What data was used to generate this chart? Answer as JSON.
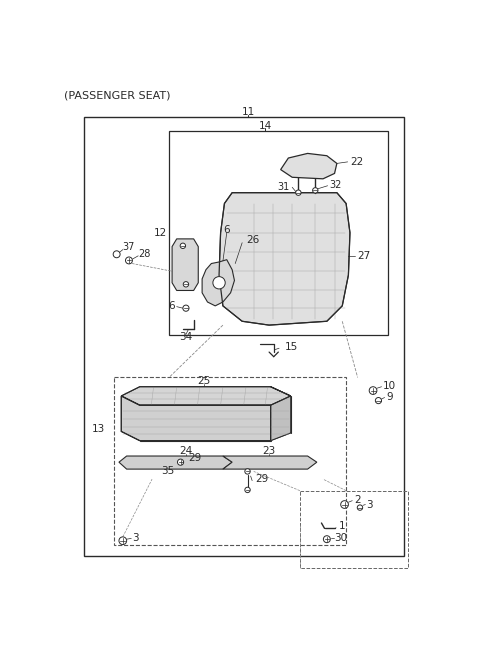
{
  "title": "(PASSENGER SEAT)",
  "bg_color": "#ffffff",
  "line_color": "#2a2a2a",
  "fig_width": 4.8,
  "fig_height": 6.56,
  "dpi": 100
}
